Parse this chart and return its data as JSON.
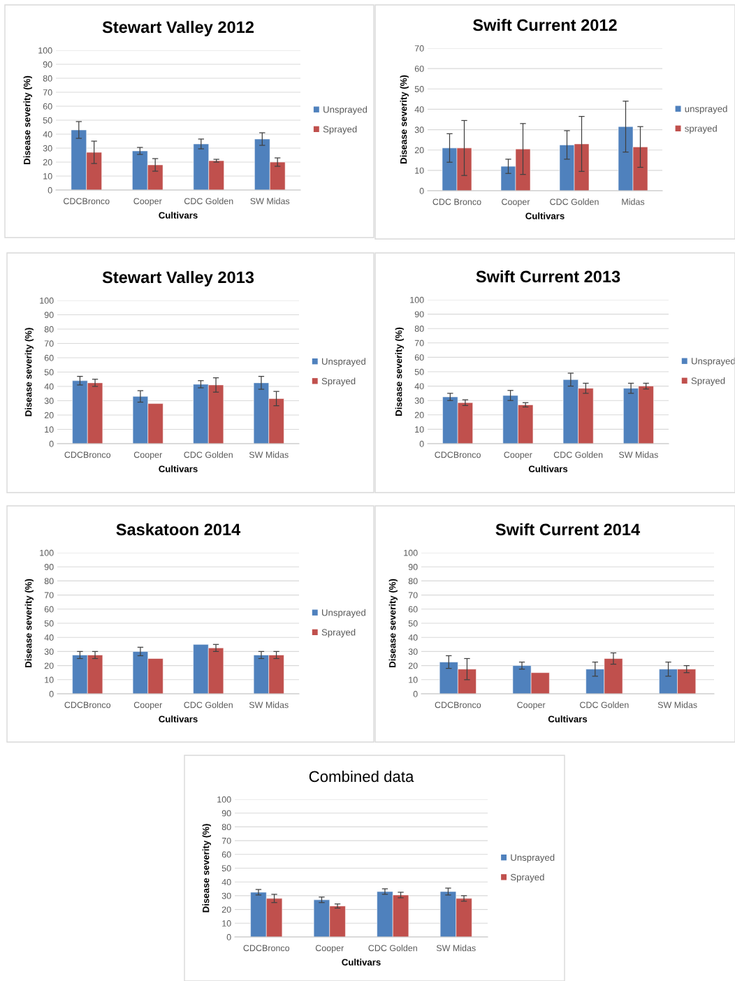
{
  "chart_data": [
    {
      "type": "bar",
      "title": "Stewart Valley 2012",
      "xlabel": "Cultivars",
      "ylabel": "Disease severity (%)",
      "categories": [
        "CDCBronco",
        "Cooper",
        "CDC Golden",
        "SW Midas"
      ],
      "ylim": [
        0,
        100
      ],
      "yticks": [
        0,
        10,
        20,
        30,
        40,
        50,
        60,
        70,
        80,
        90,
        100
      ],
      "grid": "y",
      "legend": "right",
      "series": [
        {
          "name": "Unsprayed",
          "color": "#4f81bd",
          "values": [
            43,
            28,
            33,
            36.5
          ],
          "errors": [
            6,
            2.5,
            3.5,
            4.5
          ]
        },
        {
          "name": "Sprayed",
          "color": "#c0504d",
          "values": [
            27,
            18,
            21,
            20
          ],
          "errors": [
            8,
            4.5,
            1,
            3
          ]
        }
      ]
    },
    {
      "type": "bar",
      "title": "Swift Current 2012",
      "xlabel": "Cultivars",
      "ylabel": "Disease severity (%)",
      "categories": [
        "CDC Bronco",
        "Cooper",
        "CDC Golden",
        "Midas"
      ],
      "ylim": [
        0,
        70
      ],
      "yticks": [
        0,
        10,
        20,
        30,
        40,
        50,
        60,
        70
      ],
      "grid": "y",
      "legend": "right",
      "series": [
        {
          "name": "unsprayed",
          "color": "#4f81bd",
          "values": [
            21,
            12,
            22.5,
            31.5
          ],
          "errors": [
            7,
            3.5,
            7,
            12.5
          ]
        },
        {
          "name": "sprayed",
          "color": "#c0504d",
          "values": [
            21,
            20.5,
            23,
            21.5
          ],
          "errors": [
            13.5,
            12.5,
            13.5,
            10
          ]
        }
      ]
    },
    {
      "type": "bar",
      "title": "Stewart Valley 2013",
      "xlabel": "Cultivars",
      "ylabel": "Disease severity (%)",
      "categories": [
        "CDCBronco",
        "Cooper",
        "CDC Golden",
        "SW Midas"
      ],
      "ylim": [
        0,
        100
      ],
      "yticks": [
        0,
        10,
        20,
        30,
        40,
        50,
        60,
        70,
        80,
        90,
        100
      ],
      "grid": "y",
      "legend": "right",
      "series": [
        {
          "name": "Unsprayed",
          "color": "#4f81bd",
          "values": [
            44,
            33,
            41.5,
            42.5
          ],
          "errors": [
            3,
            4,
            2.5,
            4.5
          ]
        },
        {
          "name": "Sprayed",
          "color": "#c0504d",
          "values": [
            42.5,
            28,
            41,
            31.5
          ],
          "errors": [
            2.5,
            null,
            5,
            5
          ]
        }
      ]
    },
    {
      "type": "bar",
      "title": "Swift Current 2013",
      "xlabel": "Cultivars",
      "ylabel": "Disease severity (%)",
      "categories": [
        "CDCBronco",
        "Cooper",
        "CDC Golden",
        "SW Midas"
      ],
      "ylim": [
        0,
        100
      ],
      "yticks": [
        0,
        10,
        20,
        30,
        40,
        50,
        60,
        70,
        80,
        90,
        100
      ],
      "grid": "y",
      "legend": "right",
      "series": [
        {
          "name": "Unsprayed",
          "color": "#4f81bd",
          "values": [
            32.5,
            33.5,
            44.5,
            38.5
          ],
          "errors": [
            2.5,
            3.5,
            4.5,
            3.5
          ]
        },
        {
          "name": "Sprayed",
          "color": "#c0504d",
          "values": [
            28.5,
            27,
            38.5,
            40
          ],
          "errors": [
            2,
            1.5,
            3.5,
            2
          ]
        }
      ]
    },
    {
      "type": "bar",
      "title": "Saskatoon 2014",
      "xlabel": "Cultivars",
      "ylabel": "Disease severity (%)",
      "categories": [
        "CDCBronco",
        "Cooper",
        "CDC Golden",
        "SW Midas"
      ],
      "ylim": [
        0,
        100
      ],
      "yticks": [
        0,
        10,
        20,
        30,
        40,
        50,
        60,
        70,
        80,
        90,
        100
      ],
      "grid": "y",
      "legend": "right",
      "series": [
        {
          "name": "Unsprayed",
          "color": "#4f81bd",
          "values": [
            27.5,
            30,
            35,
            27.5
          ],
          "errors": [
            2.5,
            3,
            null,
            2.5
          ]
        },
        {
          "name": "Sprayed",
          "color": "#c0504d",
          "values": [
            27.5,
            25,
            32.5,
            27.5
          ],
          "errors": [
            2.5,
            null,
            2.5,
            2.5
          ]
        }
      ]
    },
    {
      "type": "bar",
      "title": "Swift Current 2014",
      "xlabel": "Cultivars",
      "ylabel": "Disease severity (%)",
      "categories": [
        "CDCBronco",
        "Cooper",
        "CDC Golden",
        "SW Midas"
      ],
      "ylim": [
        0,
        100
      ],
      "yticks": [
        0,
        10,
        20,
        30,
        40,
        50,
        60,
        70,
        80,
        90,
        100
      ],
      "grid": "y",
      "series": [
        {
          "color": "#4f81bd",
          "values": [
            22.5,
            20,
            17.5,
            17.5
          ],
          "errors": [
            4.5,
            2.5,
            5,
            5
          ]
        },
        {
          "color": "#c0504d",
          "values": [
            17.5,
            15,
            25,
            17.5
          ],
          "errors": [
            7.5,
            null,
            4,
            2.5
          ]
        }
      ]
    },
    {
      "type": "bar",
      "title": "Combined data",
      "xlabel": "Cultivars",
      "ylabel": "Disease severity (%)",
      "categories": [
        "CDCBronco",
        "Cooper",
        "CDC Golden",
        "SW Midas"
      ],
      "ylim": [
        0,
        100
      ],
      "yticks": [
        0,
        10,
        20,
        30,
        40,
        50,
        60,
        70,
        80,
        90,
        100
      ],
      "grid": "y",
      "legend": "right",
      "series": [
        {
          "name": "Unsprayed",
          "color": "#4f81bd",
          "values": [
            32.5,
            27,
            33,
            33
          ],
          "errors": [
            2,
            2,
            2,
            2.5
          ]
        },
        {
          "name": "Sprayed",
          "color": "#c0504d",
          "values": [
            28,
            22.5,
            30.5,
            28
          ],
          "errors": [
            3,
            1.5,
            2,
            2
          ]
        }
      ]
    }
  ]
}
